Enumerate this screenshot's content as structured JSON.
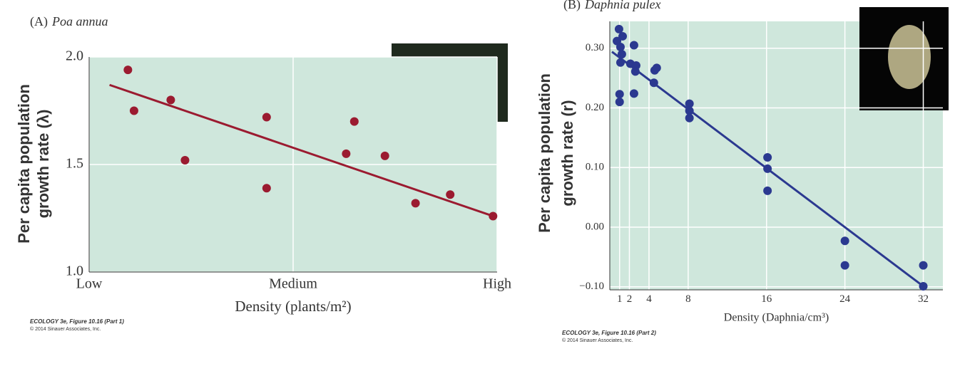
{
  "chart_data": [
    {
      "type": "scatter",
      "panel_label": "(A)",
      "title": "Poa annua",
      "ylabel": [
        "Per capita population",
        "growth rate (λ)"
      ],
      "xlabel": "Density (plants/m²)",
      "footnote": [
        "ECOLOGY 3e, Figure 10.16 (Part 1)",
        "© 2014 Sinauer Associates, Inc."
      ],
      "xlim": [
        0,
        2
      ],
      "xticks": [
        {
          "value": 0,
          "label": "Low"
        },
        {
          "value": 1,
          "label": "Medium"
        },
        {
          "value": 2,
          "label": "High"
        }
      ],
      "ylim": [
        1.0,
        2.0
      ],
      "yticks": [
        {
          "value": 1.0,
          "label": "1.0"
        },
        {
          "value": 1.5,
          "label": "1.5"
        },
        {
          "value": 2.0,
          "label": "2.0"
        }
      ],
      "grid": true,
      "color": "#9b1b30",
      "x": [
        0.19,
        0.22,
        0.4,
        0.47,
        0.87,
        0.87,
        1.26,
        1.3,
        1.45,
        1.6,
        1.77,
        1.98
      ],
      "values": [
        1.94,
        1.75,
        1.8,
        1.52,
        1.72,
        1.39,
        1.55,
        1.7,
        1.54,
        1.32,
        1.36,
        1.26
      ],
      "trend_line": {
        "x": [
          0.1,
          1.98
        ],
        "y": [
          1.87,
          1.26
        ]
      }
    },
    {
      "type": "scatter",
      "panel_label": "(B)",
      "title": "Daphnia pulex",
      "ylabel": [
        "Per capita population",
        "growth rate (r)"
      ],
      "xlabel": "Density (Daphnia/cm³)",
      "footnote": [
        "ECOLOGY 3e, Figure 10.16 (Part 2)",
        "© 2014 Sinauer Associates, Inc."
      ],
      "xlim": [
        0,
        34
      ],
      "xticks": [
        1,
        2,
        4,
        8,
        16,
        24,
        32
      ],
      "ylim": [
        -0.105,
        0.345
      ],
      "yticks": [
        {
          "value": 0.3,
          "label": "0.30"
        },
        {
          "value": 0.2,
          "label": "0.20"
        },
        {
          "value": 0.1,
          "label": "0.10"
        },
        {
          "value": 0,
          "label": "0.00"
        },
        {
          "value": -0.1,
          "label": "−0.10"
        }
      ],
      "grid": true,
      "color": "#2b3990",
      "x": [
        0.73,
        0.94,
        1.31,
        1.09,
        1.23,
        1.09,
        1.0,
        1.0,
        2.1,
        2.47,
        2.69,
        2.61,
        2.47,
        4.58,
        4.79,
        4.5,
        8.13,
        8.13,
        8.13,
        16.1,
        16.1,
        16.1,
        24.0,
        24.0,
        32.0,
        32.0
      ],
      "values": [
        0.312,
        0.332,
        0.32,
        0.302,
        0.29,
        0.276,
        0.223,
        0.21,
        0.274,
        0.305,
        0.271,
        0.261,
        0.224,
        0.263,
        0.267,
        0.242,
        0.207,
        0.195,
        0.183,
        0.117,
        0.098,
        0.061,
        -0.023,
        -0.064,
        -0.064,
        -0.099
      ],
      "trend_line": {
        "x": [
          0.22,
          32
        ],
        "y": [
          0.294,
          -0.099
        ]
      }
    }
  ]
}
